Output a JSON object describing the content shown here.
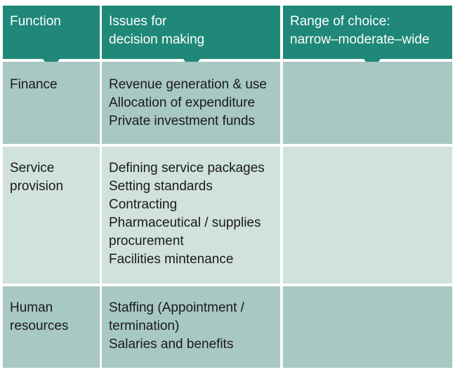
{
  "header": {
    "function_lines": [
      "Function"
    ],
    "issues_lines": [
      "Issues for",
      "decision making"
    ],
    "range_lines": [
      "Range of choice:",
      "narrow–moderate–wide"
    ]
  },
  "rows": [
    {
      "function_lines": [
        "Finance"
      ],
      "issues_lines": [
        "Revenue generation & use",
        "Allocation of expenditure",
        "Private investment funds"
      ],
      "range": ""
    },
    {
      "function_lines": [
        "Service",
        "provision"
      ],
      "issues_lines": [
        "Defining service packages",
        "Setting standards",
        "Contracting",
        "Pharmaceutical / supplies",
        "procurement",
        "Facilities mintenance"
      ],
      "range": ""
    },
    {
      "function_lines": [
        "Human",
        "resources"
      ],
      "issues_lines": [
        "Staffing (Appointment /",
        "termination)",
        "Salaries and benefits"
      ],
      "range": ""
    }
  ],
  "colors": {
    "header": "#1f8878",
    "row_dark": "#a7c8c3",
    "row_light": "#d0e1de"
  }
}
